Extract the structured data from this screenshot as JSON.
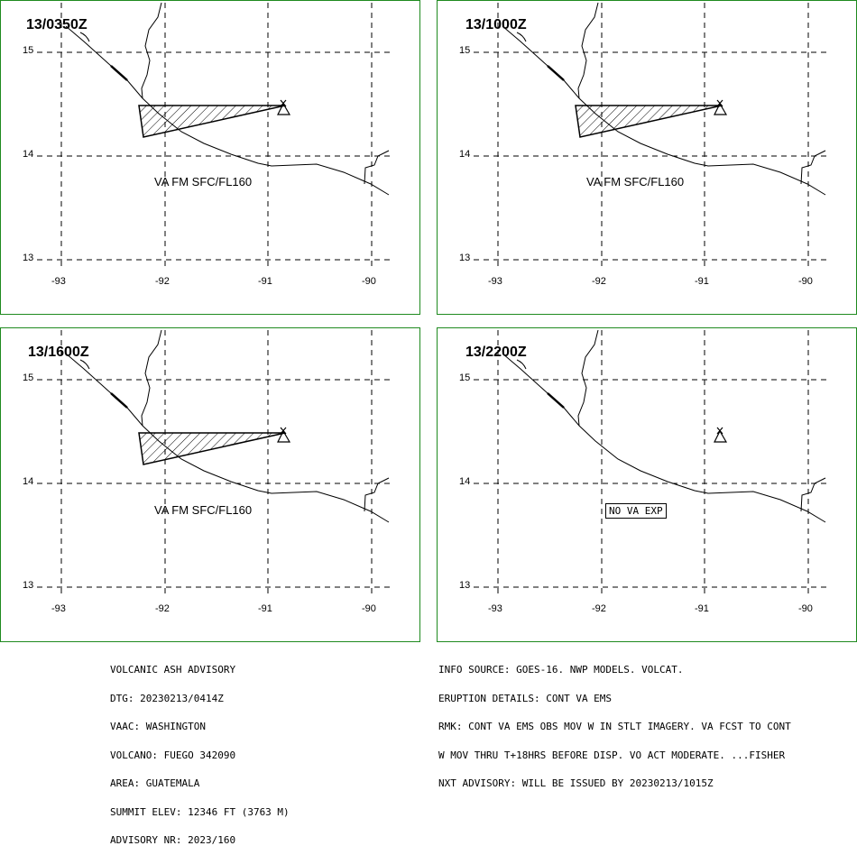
{
  "panels": [
    {
      "time": "13/0350Z",
      "va_label": "VA FM SFC/FL160",
      "show_ash": true
    },
    {
      "time": "13/1000Z",
      "va_label": "VA FM SFC/FL160",
      "show_ash": true
    },
    {
      "time": "13/1600Z",
      "va_label": "VA FM SFC/FL160",
      "show_ash": true
    },
    {
      "time": "13/2200Z",
      "va_label": "NO VA EXP",
      "show_ash": false
    }
  ],
  "axes": {
    "lat_labels": [
      "15",
      "14",
      "13"
    ],
    "lon_labels": [
      "-93",
      "-92",
      "-91",
      "-90"
    ]
  },
  "advisory_left": [
    "VOLCANIC ASH ADVISORY",
    "DTG: 20230213/0414Z",
    "VAAC: WASHINGTON",
    "VOLCANO: FUEGO 342090",
    "AREA: GUATEMALA",
    "SUMMIT ELEV: 12346 FT (3763 M)",
    "ADVISORY NR: 2023/160"
  ],
  "advisory_right": [
    "INFO SOURCE: GOES-16. NWP MODELS. VOLCAT.",
    "ERUPTION DETAILS: CONT VA EMS",
    "RMK: CONT VA EMS OBS MOV W IN STLT IMAGERY. VA FCST TO CONT",
    "W MOV THRU T+18HRS BEFORE DISP. VO ACT MODERATE. ...FISHER",
    "NXT ADVISORY: WILL BE ISSUED BY 20230213/1015Z"
  ],
  "colors": {
    "border": "#1f8a1f",
    "grid": "#000000"
  }
}
